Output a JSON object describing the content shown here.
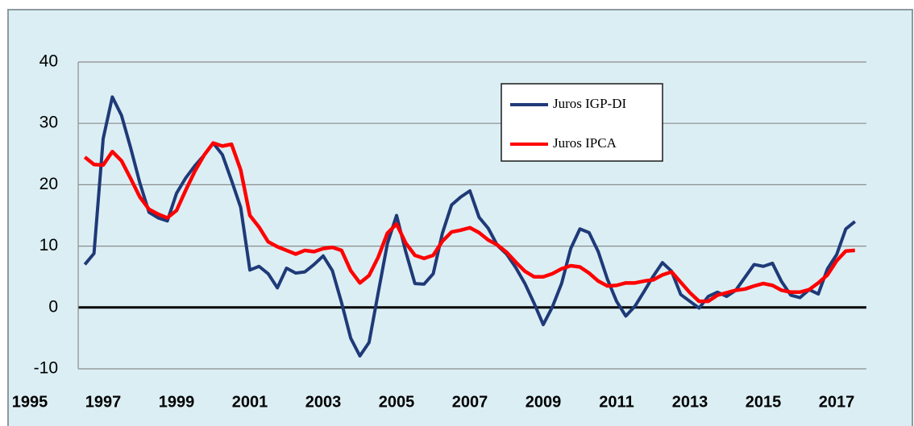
{
  "chart_data": {
    "type": "line",
    "x": [
      1996.5,
      1996.75,
      1997,
      1997.25,
      1997.5,
      1997.75,
      1998,
      1998.25,
      1998.5,
      1998.75,
      1999,
      1999.25,
      1999.5,
      1999.75,
      2000,
      2000.25,
      2000.5,
      2000.75,
      2001,
      2001.25,
      2001.5,
      2001.75,
      2002,
      2002.25,
      2002.5,
      2002.75,
      2003,
      2003.25,
      2003.5,
      2003.75,
      2004,
      2004.25,
      2004.5,
      2004.75,
      2005,
      2005.25,
      2005.5,
      2005.75,
      2006,
      2006.25,
      2006.5,
      2006.75,
      2007,
      2007.25,
      2007.5,
      2007.75,
      2008,
      2008.25,
      2008.5,
      2008.75,
      2009,
      2009.25,
      2009.5,
      2009.75,
      2010,
      2010.25,
      2010.5,
      2010.75,
      2011,
      2011.25,
      2011.5,
      2011.75,
      2012,
      2012.25,
      2012.5,
      2012.75,
      2013,
      2013.25,
      2013.5,
      2013.75,
      2014,
      2014.25,
      2014.5,
      2014.75,
      2015,
      2015.25,
      2015.5,
      2015.75,
      2016,
      2016.25,
      2016.5,
      2016.75,
      2017,
      2017.25,
      2017.5
    ],
    "series": [
      {
        "name": "Juros IGP-DI",
        "color": "#1f3a78",
        "values": [
          7,
          8.8,
          27.5,
          34.3,
          31.3,
          26,
          20.3,
          15.5,
          14.6,
          14.1,
          18.6,
          21.1,
          23.1,
          24.8,
          26.8,
          24.9,
          20.7,
          16.3,
          6.1,
          6.7,
          5.5,
          3.2,
          6.4,
          5.6,
          5.8,
          7,
          8.4,
          6,
          0.8,
          -5,
          -7.9,
          -5.7,
          2.4,
          10.4,
          15,
          9.1,
          3.9,
          3.8,
          5.5,
          12.1,
          16.7,
          18,
          19,
          14.7,
          12.9,
          10.1,
          8.7,
          6.5,
          3.9,
          0.7,
          -2.8,
          0.1,
          3.9,
          9.6,
          12.8,
          12.2,
          9.1,
          4.6,
          1,
          -1.4,
          0.2,
          2.6,
          5.1,
          7.3,
          5.9,
          2.1,
          1,
          -0.1,
          1.8,
          2.5,
          1.8,
          2.8,
          4.9,
          7,
          6.7,
          7.2,
          4.2,
          2,
          1.6,
          2.9,
          2.2,
          6.3,
          8.6,
          12.8,
          14
        ]
      },
      {
        "name": "Juros IPCA",
        "color": "#ff0000",
        "values": [
          24.5,
          23.3,
          23.2,
          25.4,
          23.9,
          21,
          18,
          16,
          15.2,
          14.6,
          15.8,
          19.1,
          22.2,
          24.8,
          26.8,
          26.3,
          26.6,
          22.4,
          15,
          13.1,
          10.7,
          9.9,
          9.3,
          8.7,
          9.3,
          9.1,
          9.6,
          9.8,
          9.3,
          6,
          4,
          5.2,
          8.2,
          12.1,
          13.6,
          10.5,
          8.5,
          8,
          8.5,
          10.8,
          12.3,
          12.6,
          13,
          12.2,
          11,
          10.2,
          9,
          7.4,
          5.9,
          5,
          5,
          5.5,
          6.3,
          6.8,
          6.6,
          5.6,
          4.3,
          3.5,
          3.6,
          4,
          4,
          4.3,
          4.5,
          5.3,
          5.8,
          4.1,
          2.4,
          1,
          1,
          2,
          2.4,
          2.8,
          3,
          3.5,
          3.9,
          3.6,
          2.8,
          2.5,
          2.5,
          2.9,
          4,
          5.3,
          7.6,
          9.2,
          9.3
        ]
      }
    ],
    "xlim": [
      1996.32,
      2017.81
    ],
    "xticks": [
      1995,
      1997,
      1999,
      2001,
      2003,
      2005,
      2007,
      2009,
      2011,
      2013,
      2015,
      2017
    ],
    "ylim": [
      -10,
      40
    ],
    "yticks": [
      -10,
      0,
      10,
      20,
      30,
      40
    ],
    "grid": true,
    "legend": "top-center"
  }
}
